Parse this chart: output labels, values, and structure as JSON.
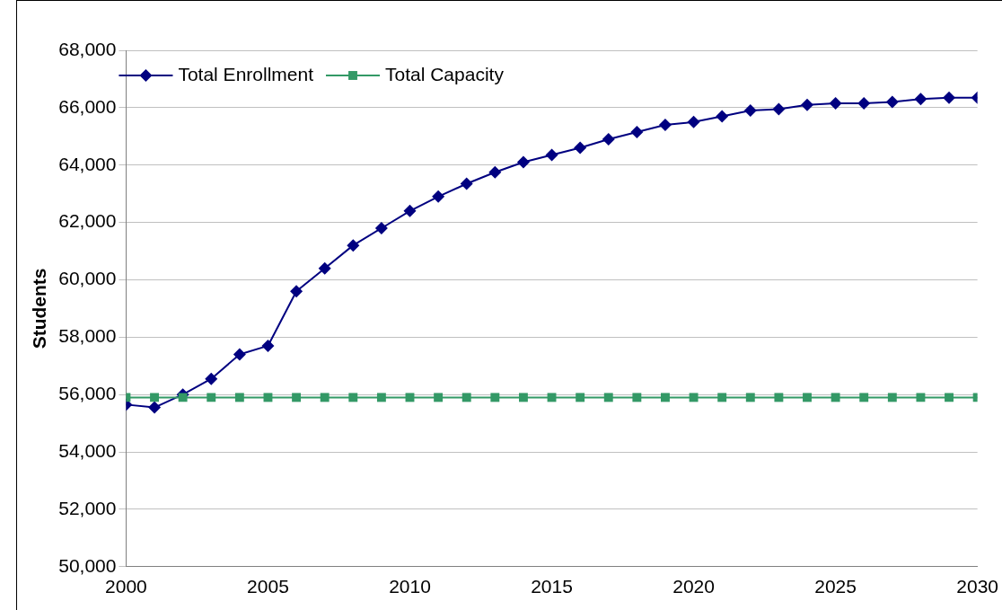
{
  "chart_data": {
    "type": "line",
    "ylabel": "Students",
    "x": [
      2000,
      2001,
      2002,
      2003,
      2004,
      2005,
      2006,
      2007,
      2008,
      2009,
      2010,
      2011,
      2012,
      2013,
      2014,
      2015,
      2016,
      2017,
      2018,
      2019,
      2020,
      2021,
      2022,
      2023,
      2024,
      2025,
      2026,
      2027,
      2028,
      2029,
      2030
    ],
    "series": [
      {
        "name": "Total Enrollment",
        "color": "#000080",
        "marker": "diamond",
        "values": [
          55650,
          55550,
          56000,
          56550,
          57400,
          57700,
          59600,
          60400,
          61200,
          61800,
          62400,
          62900,
          63350,
          63750,
          64100,
          64350,
          64600,
          64900,
          65150,
          65400,
          65500,
          65700,
          65900,
          65950,
          66100,
          66150,
          66150,
          66200,
          66300,
          66350,
          66350
        ]
      },
      {
        "name": "Total Capacity",
        "color": "#339966",
        "marker": "square",
        "values": [
          55900,
          55900,
          55900,
          55900,
          55900,
          55900,
          55900,
          55900,
          55900,
          55900,
          55900,
          55900,
          55900,
          55900,
          55900,
          55900,
          55900,
          55900,
          55900,
          55900,
          55900,
          55900,
          55900,
          55900,
          55900,
          55900,
          55900,
          55900,
          55900,
          55900,
          55900
        ]
      }
    ],
    "xlim": [
      2000,
      2030
    ],
    "xticks": [
      2000,
      2005,
      2010,
      2015,
      2020,
      2025,
      2030
    ],
    "ylim": [
      50000,
      68000
    ],
    "yticks": [
      {
        "value": 50000,
        "label": "50,000"
      },
      {
        "value": 52000,
        "label": "52,000"
      },
      {
        "value": 54000,
        "label": "54,000"
      },
      {
        "value": 56000,
        "label": "56,000"
      },
      {
        "value": 58000,
        "label": "58,000"
      },
      {
        "value": 60000,
        "label": "60,000"
      },
      {
        "value": 62000,
        "label": "62,000"
      },
      {
        "value": 64000,
        "label": "64,000"
      },
      {
        "value": 66000,
        "label": "66,000"
      },
      {
        "value": 68000,
        "label": "68,000"
      }
    ],
    "grid": "y",
    "legend": "top left",
    "line_style": "solid"
  }
}
